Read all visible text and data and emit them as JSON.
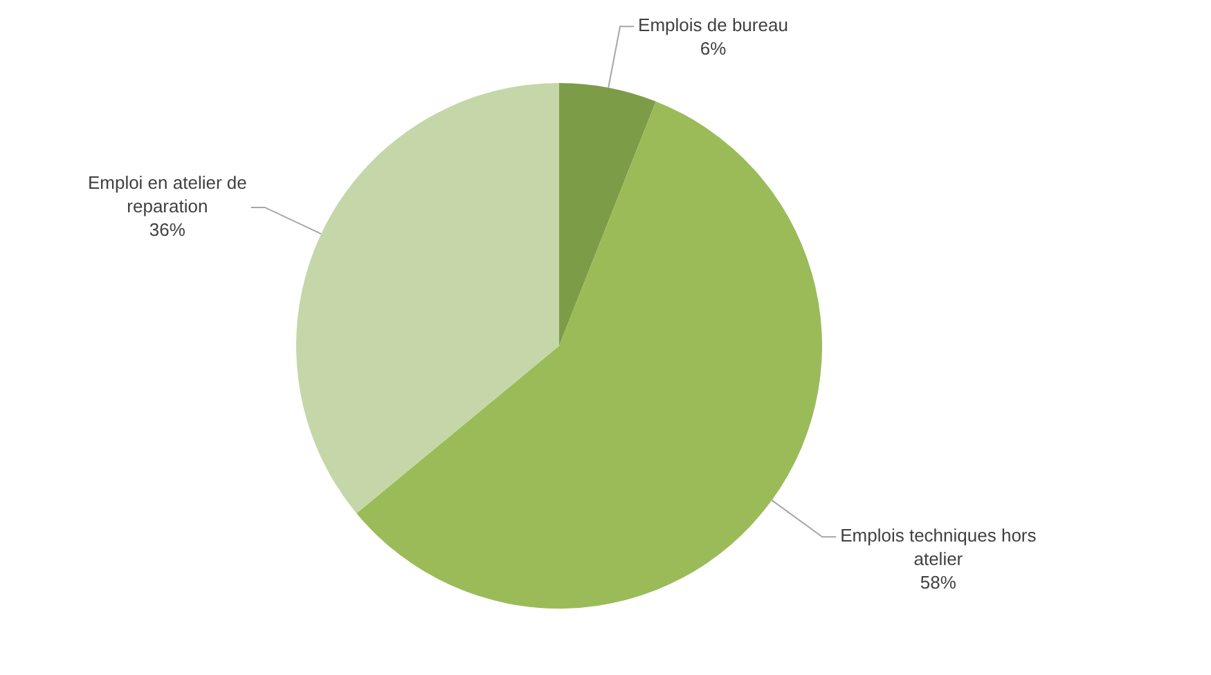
{
  "chart_data": {
    "type": "pie",
    "categories": [
      "Emplois de bureau",
      "Emplois techniques hors atelier",
      "Emploi en atelier de reparation"
    ],
    "values": [
      6,
      58,
      36
    ],
    "value_labels": [
      "6%",
      "58%",
      "36%"
    ],
    "colors": [
      "#7d9c48",
      "#9bbb59",
      "#c5d6a8"
    ],
    "legend": false
  }
}
